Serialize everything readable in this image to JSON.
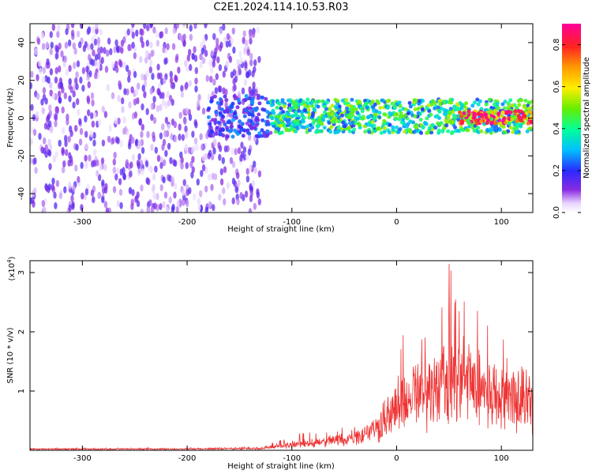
{
  "title": "C2E1.2024.114.10.53.R03",
  "chart_data": [
    {
      "type": "heatmap",
      "title": "",
      "xlabel": "Height of straight line (km)",
      "ylabel": "Frequency (Hz)",
      "xlim": [
        -350,
        130
      ],
      "ylim": [
        -50,
        50
      ],
      "xticks": [
        -300,
        -200,
        -100,
        0,
        100
      ],
      "yticks": [
        -40,
        -20,
        0,
        20,
        40
      ],
      "grid": false,
      "colorbar": {
        "label": "Normalized spectral amplitude",
        "range": [
          0,
          0.9
        ],
        "ticks": [
          "0.0",
          "0.2",
          "0.4",
          "0.6",
          "0.8"
        ]
      },
      "regions": [
        {
          "x_range": [
            -350,
            -130
          ],
          "freq_range": [
            -50,
            50
          ],
          "amplitude": 0.1
        },
        {
          "x_range": [
            -180,
            -120
          ],
          "freq_range": [
            -10,
            12
          ],
          "amplitude": 0.2
        },
        {
          "x_range": [
            -120,
            130
          ],
          "freq_range": [
            -8,
            10
          ],
          "amplitude": 0.4
        },
        {
          "x_range": [
            60,
            130
          ],
          "freq_range": [
            -3,
            4
          ],
          "amplitude": 0.8
        }
      ]
    },
    {
      "type": "line",
      "title": "",
      "xlabel": "Height of straight line (km)",
      "ylabel": "SNR (10 * v/v)",
      "yscale_label": "(x10",
      "yscale_exp": "4",
      "yscale_close": ")",
      "xlim": [
        -350,
        130
      ],
      "ylim": [
        0,
        3.2
      ],
      "xticks": [
        -300,
        -200,
        -100,
        0,
        100
      ],
      "yticks": [
        1,
        2,
        3
      ],
      "color": "#ee3333",
      "grid": false,
      "envelope": [
        {
          "x": -350,
          "base": 0.02,
          "peak": 0.03
        },
        {
          "x": -200,
          "base": 0.02,
          "peak": 0.04
        },
        {
          "x": -130,
          "base": 0.03,
          "peak": 0.06
        },
        {
          "x": -110,
          "base": 0.05,
          "peak": 0.2
        },
        {
          "x": -80,
          "base": 0.08,
          "peak": 0.35
        },
        {
          "x": -50,
          "base": 0.12,
          "peak": 0.5
        },
        {
          "x": -20,
          "base": 0.25,
          "peak": 0.9
        },
        {
          "x": 0,
          "base": 0.5,
          "peak": 1.6
        },
        {
          "x": 20,
          "base": 0.7,
          "peak": 2.2
        },
        {
          "x": 40,
          "base": 0.8,
          "peak": 2.8
        },
        {
          "x": 60,
          "base": 0.9,
          "peak": 3.1
        },
        {
          "x": 80,
          "base": 0.85,
          "peak": 2.3
        },
        {
          "x": 100,
          "base": 0.8,
          "peak": 1.8
        },
        {
          "x": 130,
          "base": 0.8,
          "peak": 1.6
        }
      ]
    }
  ]
}
